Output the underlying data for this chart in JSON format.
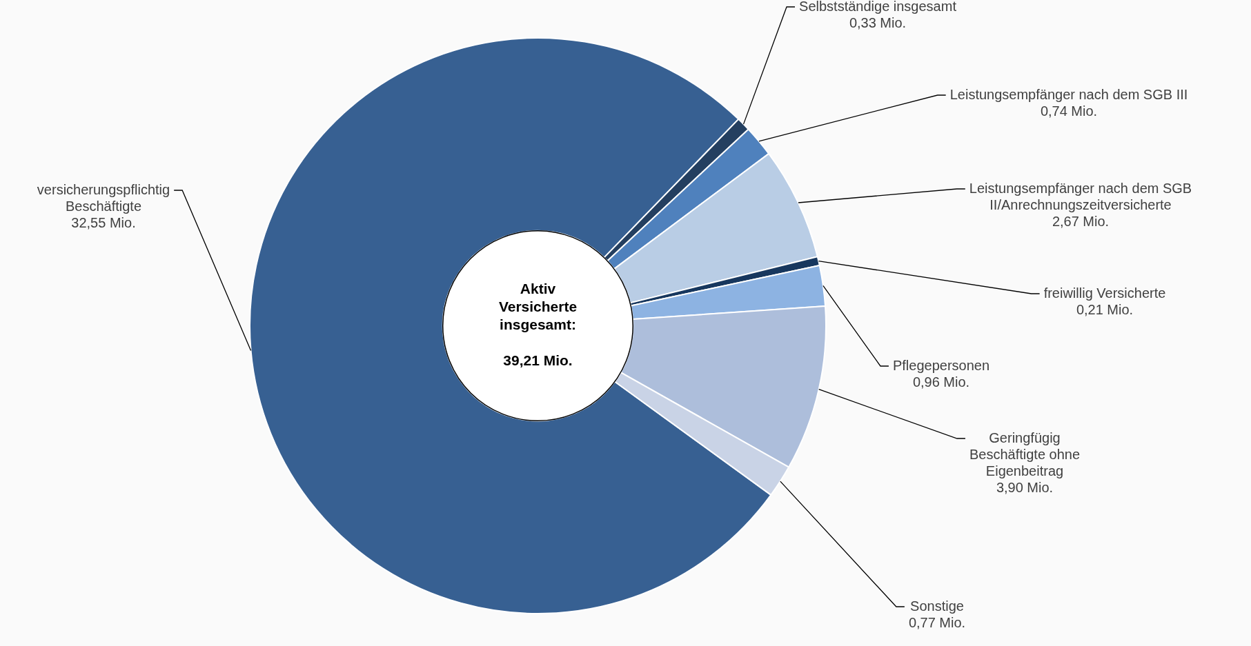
{
  "chart_data": {
    "type": "donut",
    "categories": [
      "versicherungspflichtig Beschäftigte",
      "Selbstständige insgesamt",
      "Leistungsempfänger nach dem SGB III",
      "Leistungsempfänger nach dem SGB II/Anrechnungszeitversicherte",
      "freiwillig Versicherte",
      "Pflegepersonen",
      "Geringfügig Beschäftigte ohne Eigenbeitrag",
      "Sonstige"
    ],
    "values": [
      32.55,
      0.33,
      0.74,
      2.67,
      0.21,
      0.96,
      3.9,
      0.77
    ],
    "value_labels": [
      "32,55 Mio.",
      "0,33 Mio.",
      "0,74 Mio.",
      "2,67 Mio.",
      "0,21 Mio.",
      "0,96 Mio.",
      "3,90 Mio.",
      "0,77 Mio."
    ],
    "colors": [
      "#376092",
      "#243f60",
      "#4f81bd",
      "#b9cde5",
      "#17375e",
      "#8db3e2",
      "#adbedb",
      "#c9d3e6"
    ],
    "annotations": [
      "Aktiv Versicherte insgesamt:",
      "39,21 Mio."
    ],
    "legend": false
  }
}
